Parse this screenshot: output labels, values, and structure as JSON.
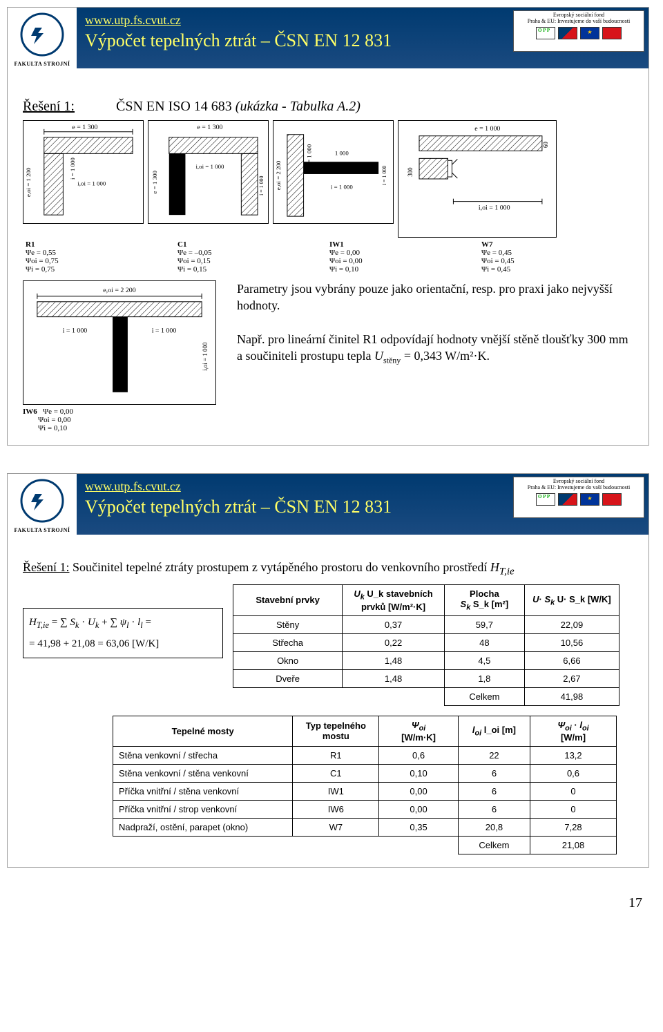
{
  "page_number": "17",
  "header": {
    "link": "www.utp.fs.cvut.cz",
    "title": "Výpočet tepelných ztrát – ČSN EN 12 831",
    "faculty": "FAKULTA STROJNÍ",
    "eu_top1": "Evropský sociální fond",
    "eu_top2": "Praha & EU: Investujeme do vaší budoucnosti",
    "eu_star": "★"
  },
  "slide1": {
    "reseni": "Řešení 1:",
    "csn_prefix": "ČSN EN ISO 14 683 ",
    "csn_italic": "(ukázka - Tabulka A.2)",
    "drawing_labels": {
      "d1_e": "e = 1 300",
      "d1_eoi": "e,oi = 1 200",
      "d1_ioi": "i,oi = 1 000",
      "d1_i": "i = 1 000",
      "d2_e": "e = 1 300",
      "d2_eoi2": "e = 1 300",
      "d2_ioi": "i,oi = 1 000",
      "d2_i": "i,oi = 1 000",
      "d2_iooi": "i = 1 000",
      "d3_e": "e,oi = 2 200",
      "d3_i": "i = 1 000",
      "d3_ioi2": "i,oi = 1 000",
      "d3_1000a": "1 000",
      "d3_1000b": "i = 1 000",
      "d4_e": "e = 1 000",
      "d4_ioi": "i,oi = 1 000",
      "d4_60": "60",
      "d4_300": "300",
      "d5_e": "e,oi = 2 200",
      "d5_i": "i = 1 000",
      "d5_i2": "i = 1 000",
      "d5_ioi": "i,oi = 1 000"
    },
    "params": {
      "r1_label": "R1",
      "r1_e": "Ψe   = 0,55",
      "r1_oi": "Ψoi  = 0,75",
      "r1_i": "Ψi   = 0,75",
      "c1_label": "C1",
      "c1_e": "Ψe   = –0,05",
      "c1_oi": "Ψoi  = 0,15",
      "c1_i": "Ψi   = 0,15",
      "iw1_label": "IW1",
      "iw1_e": "Ψe   = 0,00",
      "iw1_oi": "Ψoi  = 0,00",
      "iw1_i": "Ψi   = 0,10",
      "w7_label": "W7",
      "w7_e": "Ψe   = 0,45",
      "w7_oi": "Ψoi  = 0,45",
      "w7_i": "Ψi   = 0,45",
      "iw6_label": "IW6",
      "iw6_e": "Ψe   = 0,00",
      "iw6_oi": "Ψoi  = 0,00",
      "iw6_i": "Ψi   = 0,10"
    },
    "para1": "Parametry jsou vybrány pouze jako orientační, resp. pro praxi jako nejvyšší hodnoty.",
    "para2_a": "Např. pro lineární činitel R1 odpovídají hodnoty vnější stěně tloušťky 300 mm a součiniteli prostupu tepla ",
    "para2_u": "U",
    "para2_sub": "stěny",
    "para2_b": " = 0,343 W/m²·K."
  },
  "slide2": {
    "intro_a": "Řešení 1:",
    "intro_b": " Součinitel tepelné ztráty prostupem z vytápěného prostoru do venkovního prostředí ",
    "intro_i": "H",
    "intro_sub": "T,ie",
    "calc_l1": "H_{T,ie} = ∑ S_k · U_k + ∑ ψ_l · l_l =",
    "calc_l2": "= 41,98 + 21,08 = 63,06 [W/K]",
    "table1": {
      "h1": "Stavební prvky",
      "h2a": "U_k stavebních",
      "h2b": "prvků [W/m²·K]",
      "h3a": "Plocha",
      "h3b": "S_k [m²]",
      "h4": "U· S_k [W/K]",
      "rows": [
        [
          "Stěny",
          "0,37",
          "59,7",
          "22,09"
        ],
        [
          "Střecha",
          "0,22",
          "48",
          "10,56"
        ],
        [
          "Okno",
          "1,48",
          "4,5",
          "6,66"
        ],
        [
          "Dveře",
          "1,48",
          "1,8",
          "2,67"
        ]
      ],
      "total_label": "Celkem",
      "total": "41,98"
    },
    "table2": {
      "h1": "Tepelné mosty",
      "h2a": "Typ tepelného",
      "h2b": "mostu",
      "h3a": "Ψ_oi",
      "h3b": "[W/m·K]",
      "h4": "l_oi [m]",
      "h5a": "Ψ_oi · l_oi",
      "h5b": "[W/m]",
      "rows": [
        [
          "Stěna venkovní / střecha",
          "R1",
          "0,6",
          "22",
          "13,2"
        ],
        [
          "Stěna venkovní / stěna venkovní",
          "C1",
          "0,10",
          "6",
          "0,6"
        ],
        [
          "Příčka vnitřní / stěna venkovní",
          "IW1",
          "0,00",
          "6",
          "0"
        ],
        [
          "Příčka vnitřní / strop venkovní",
          "IW6",
          "0,00",
          "6",
          "0"
        ],
        [
          "Nadpraží, ostění, parapet (okno)",
          "W7",
          "0,35",
          "20,8",
          "7,28"
        ]
      ],
      "total_label": "Celkem",
      "total": "21,08"
    }
  }
}
